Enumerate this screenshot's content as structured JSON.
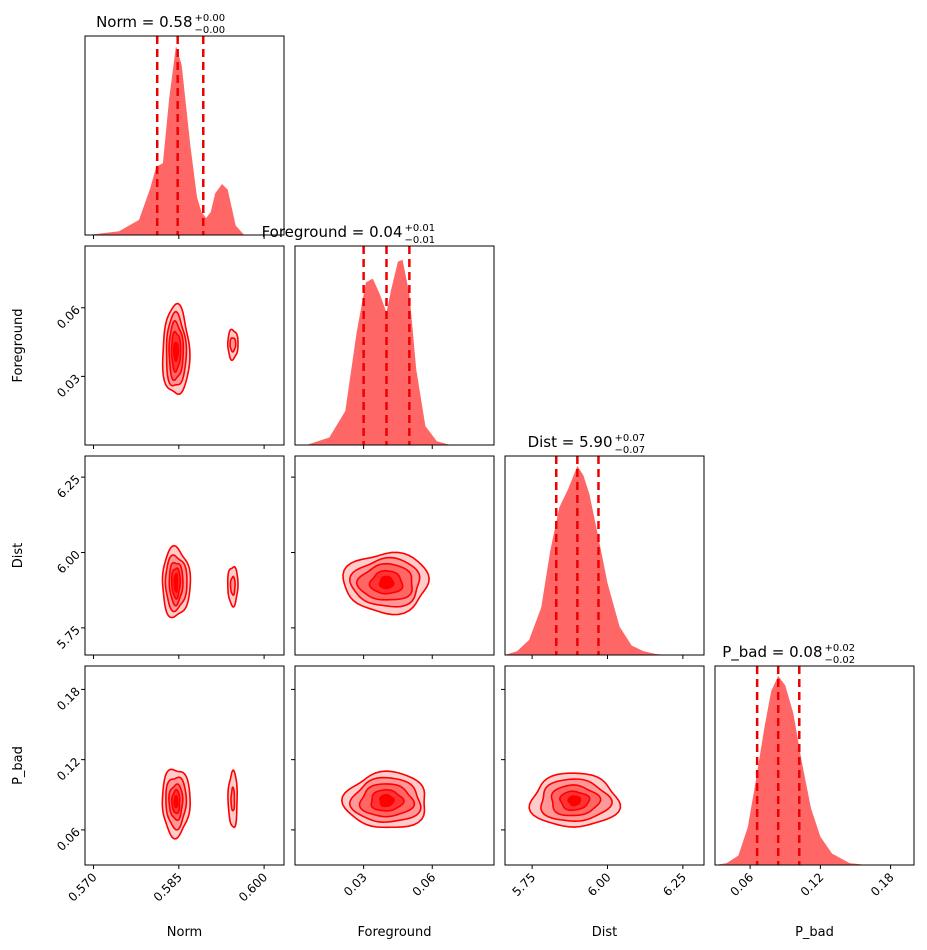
{
  "chart_data": {
    "type": "corner",
    "parameters": [
      {
        "name": "Norm",
        "xlabel": "Norm",
        "ylabel": "",
        "title_prefix": "Norm = 0.58",
        "title_sup": "+0.00",
        "title_sub": "−0.00",
        "range": [
          0.5685,
          0.6035
        ],
        "ticks": [
          0.57,
          0.585,
          0.6
        ],
        "tick_labels": [
          "0.570",
          "0.585",
          "0.600"
        ],
        "quantiles": [
          0.5812,
          0.5848,
          0.5893
        ]
      },
      {
        "name": "Foreground",
        "xlabel": "Foreground",
        "ylabel": "Foreground",
        "title_prefix": "Foreground = 0.04",
        "title_sup": "+0.01",
        "title_sub": "−0.01",
        "range": [
          0.0,
          0.087
        ],
        "ticks": [
          0.03,
          0.06
        ],
        "tick_labels": [
          "0.03",
          "0.06"
        ],
        "quantiles": [
          0.03,
          0.04,
          0.05
        ]
      },
      {
        "name": "Dist",
        "xlabel": "Dist",
        "ylabel": "Dist",
        "title_prefix": "Dist = 5.90",
        "title_sup": "+0.07",
        "title_sub": "−0.07",
        "range": [
          5.66,
          6.32
        ],
        "ticks": [
          5.75,
          6.0,
          6.25
        ],
        "tick_labels": [
          "5.75",
          "6.00",
          "6.25"
        ],
        "quantiles": [
          5.83,
          5.9,
          5.97
        ]
      },
      {
        "name": "P_bad",
        "xlabel": "P_bad",
        "ylabel": "P_bad",
        "title_prefix": "P_bad = 0.08",
        "title_sup": "+0.02",
        "title_sub": "−0.02",
        "range": [
          0.03,
          0.2
        ],
        "ticks": [
          0.06,
          0.12,
          0.18
        ],
        "tick_labels": [
          "0.06",
          "0.12",
          "0.18"
        ],
        "quantiles": [
          0.066,
          0.084,
          0.102
        ]
      }
    ],
    "histograms": {
      "Norm": {
        "x": [
          0.569,
          0.5745,
          0.578,
          0.58,
          0.581,
          0.5822,
          0.5833,
          0.5845,
          0.5855,
          0.587,
          0.5882,
          0.589,
          0.5898,
          0.5906,
          0.5914,
          0.5926,
          0.5936,
          0.595,
          0.5965
        ],
        "y": [
          0.0,
          0.02,
          0.08,
          0.25,
          0.36,
          0.38,
          0.72,
          1.0,
          0.9,
          0.48,
          0.2,
          0.12,
          0.09,
          0.12,
          0.22,
          0.27,
          0.24,
          0.05,
          0.0
        ]
      },
      "Foreground": {
        "x": [
          0.005,
          0.015,
          0.022,
          0.027,
          0.031,
          0.034,
          0.037,
          0.04,
          0.042,
          0.045,
          0.047,
          0.05,
          0.053,
          0.057,
          0.062,
          0.068
        ],
        "y": [
          0.0,
          0.04,
          0.18,
          0.6,
          0.86,
          0.88,
          0.8,
          0.7,
          0.82,
          0.97,
          0.98,
          0.8,
          0.4,
          0.1,
          0.02,
          0.0
        ]
      },
      "Dist": {
        "x": [
          5.66,
          5.7,
          5.74,
          5.78,
          5.81,
          5.84,
          5.87,
          5.9,
          5.92,
          5.94,
          5.97,
          6.0,
          6.04,
          6.08,
          6.12,
          6.16,
          6.2
        ],
        "y": [
          0.0,
          0.02,
          0.08,
          0.25,
          0.55,
          0.78,
          0.88,
          1.0,
          0.95,
          0.85,
          0.62,
          0.38,
          0.15,
          0.05,
          0.02,
          0.005,
          0.0
        ]
      },
      "P_bad": {
        "x": [
          0.03,
          0.04,
          0.05,
          0.058,
          0.065,
          0.072,
          0.078,
          0.084,
          0.09,
          0.097,
          0.104,
          0.112,
          0.12,
          0.13,
          0.145,
          0.16
        ],
        "y": [
          0.0,
          0.01,
          0.05,
          0.2,
          0.45,
          0.72,
          0.92,
          1.0,
          0.95,
          0.8,
          0.55,
          0.3,
          0.15,
          0.06,
          0.01,
          0.0
        ]
      }
    },
    "contours_2d": [
      {
        "x": "Norm",
        "y": "Foreground",
        "blobs": [
          {
            "cx": 0.5845,
            "cy": 0.041,
            "rx": [
              0.00235,
              0.00175,
              0.00125,
              0.0008,
              0.0004
            ],
            "ry": [
              0.0195,
              0.016,
              0.0125,
              0.0085,
              0.004
            ]
          },
          {
            "cx": 0.5945,
            "cy": 0.044,
            "rx": [
              0.0009,
              0.0005
            ],
            "ry": [
              0.0065,
              0.003
            ]
          }
        ]
      },
      {
        "x": "Norm",
        "y": "Dist",
        "blobs": [
          {
            "cx": 0.5845,
            "cy": 5.9,
            "rx": [
              0.00245,
              0.0019,
              0.0012,
              0.00075,
              0.0003
            ],
            "ry": [
              0.115,
              0.09,
              0.07,
              0.05,
              0.03
            ]
          },
          {
            "cx": 0.5945,
            "cy": 5.89,
            "rx": [
              0.0009,
              0.0004
            ],
            "ry": [
              0.065,
              0.03
            ]
          }
        ]
      },
      {
        "x": "Norm",
        "y": "P_bad",
        "blobs": [
          {
            "cx": 0.5845,
            "cy": 0.084,
            "rx": [
              0.00245,
              0.0018,
              0.0012,
              0.0007,
              0.0003
            ],
            "ry": [
              0.029,
              0.022,
              0.015,
              0.01,
              0.005
            ]
          },
          {
            "cx": 0.5945,
            "cy": 0.086,
            "rx": [
              0.0008,
              0.0003
            ],
            "ry": [
              0.024,
              0.01
            ]
          }
        ]
      },
      {
        "x": "Foreground",
        "y": "Dist",
        "blobs": [
          {
            "cx": 0.04,
            "cy": 5.9,
            "rx": [
              0.0185,
              0.015,
              0.012,
              0.007,
              0.003
            ],
            "ry": [
              0.1,
              0.08,
              0.06,
              0.038,
              0.02
            ]
          }
        ]
      },
      {
        "x": "Foreground",
        "y": "P_bad",
        "blobs": [
          {
            "cx": 0.04,
            "cy": 0.085,
            "rx": [
              0.018,
              0.015,
              0.0115,
              0.007,
              0.003
            ],
            "ry": [
              0.024,
              0.019,
              0.014,
              0.009,
              0.005
            ]
          }
        ]
      },
      {
        "x": "Dist",
        "y": "P_bad",
        "blobs": [
          {
            "cx": 5.89,
            "cy": 0.085,
            "rx": [
              0.145,
              0.115,
              0.08,
              0.048,
              0.02
            ],
            "ry": [
              0.023,
              0.018,
              0.013,
              0.008,
              0.004
            ]
          }
        ]
      }
    ],
    "colors": {
      "fill": "#ff6666",
      "line": "#ff0000",
      "quantile": "#ee0000",
      "axis": "#000000"
    },
    "contour_fills": [
      "#ffcccc",
      "#ff9999",
      "#ff6666",
      "#ff3333",
      "#ff0000"
    ],
    "grid": false,
    "legend": "none"
  }
}
